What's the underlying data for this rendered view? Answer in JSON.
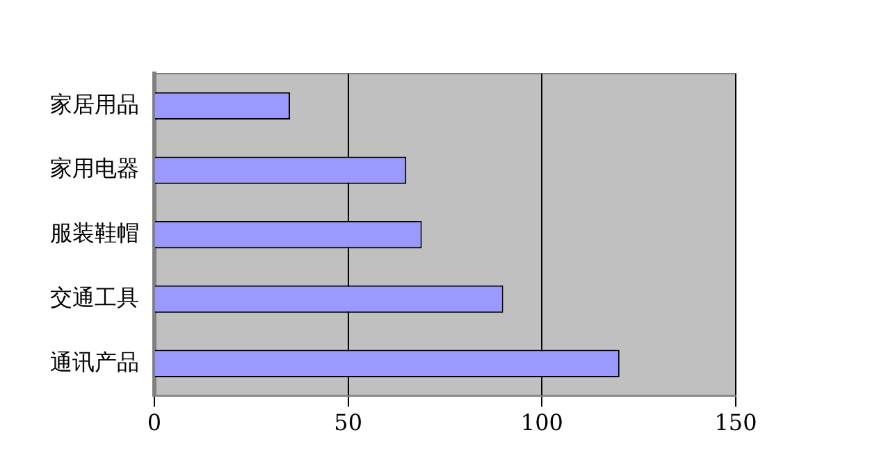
{
  "chart_data": {
    "type": "bar",
    "orientation": "horizontal",
    "categories": [
      "家居用品",
      "家用电器",
      "服装鞋帽",
      "交通工具",
      "通讯产品"
    ],
    "values": [
      35,
      65,
      69,
      90,
      120
    ],
    "color": "#9999ff",
    "xlim": [
      0,
      150
    ],
    "xticks": [
      0,
      50,
      100,
      150
    ],
    "grid": "x",
    "legend": false
  }
}
